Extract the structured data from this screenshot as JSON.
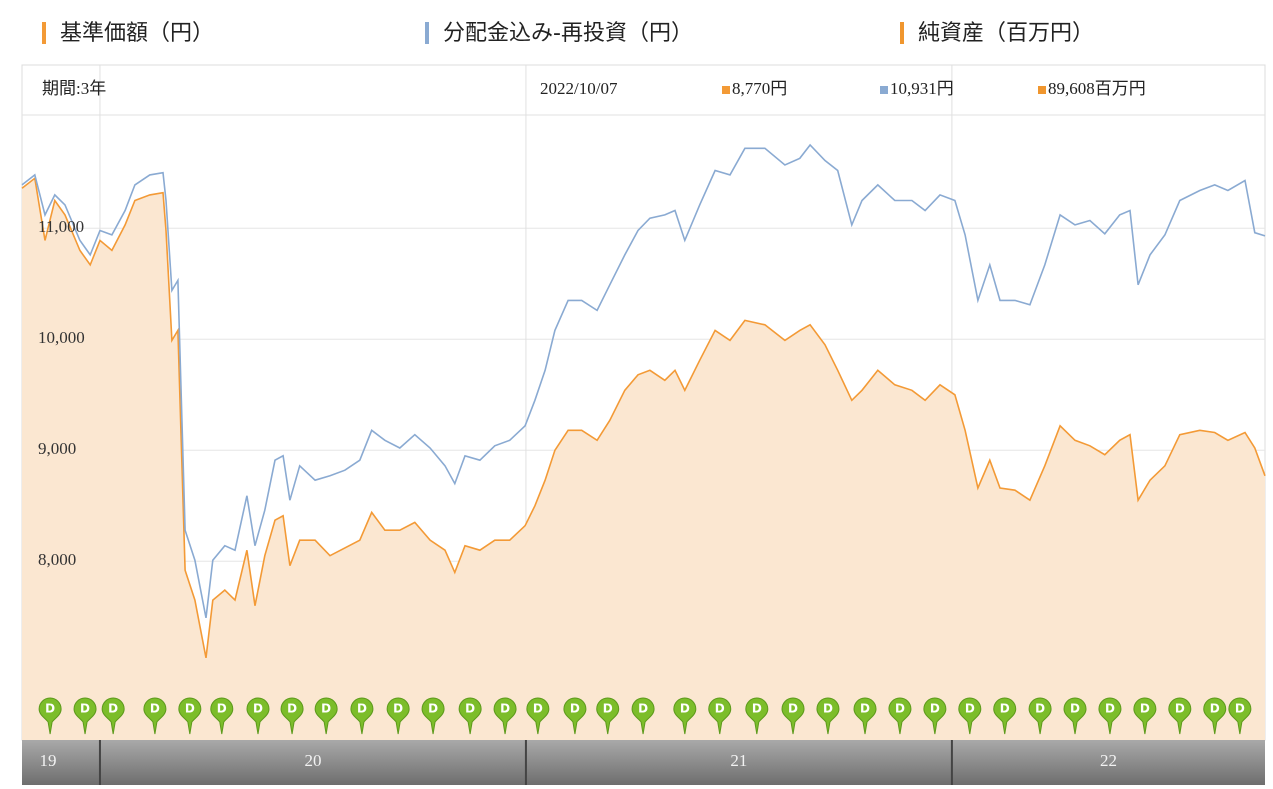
{
  "chart_data": {
    "type": "line",
    "period_label": "期間:3年",
    "date": "2022/10/07",
    "latest": {
      "values": [
        8770,
        10931,
        89608
      ],
      "value_labels": [
        "8,770円",
        "10,931円",
        "89,608百万円"
      ]
    },
    "extra_legend": {
      "name": "純資産（百万円）",
      "color": "#f0962e"
    },
    "x": [
      2019.817,
      2019.847,
      2019.871,
      2019.894,
      2019.918,
      2019.953,
      2019.977,
      2020.0,
      2020.028,
      2020.059,
      2020.082,
      2020.117,
      2020.148,
      2020.155,
      2020.169,
      2020.183,
      2020.2,
      2020.223,
      2020.249,
      2020.265,
      2020.293,
      2020.317,
      2020.345,
      2020.364,
      2020.387,
      2020.411,
      2020.43,
      2020.446,
      2020.469,
      2020.505,
      2020.54,
      2020.575,
      2020.61,
      2020.638,
      2020.669,
      2020.704,
      2020.739,
      2020.775,
      2020.81,
      2020.833,
      2020.857,
      2020.892,
      2020.927,
      2020.962,
      2020.998,
      2021.021,
      2021.045,
      2021.068,
      2021.099,
      2021.131,
      2021.167,
      2021.197,
      2021.232,
      2021.263,
      2021.291,
      2021.326,
      2021.35,
      2021.373,
      2021.408,
      2021.444,
      2021.479,
      2021.514,
      2021.561,
      2021.608,
      2021.643,
      2021.667,
      2021.702,
      2021.732,
      2021.765,
      2021.789,
      2021.826,
      2021.866,
      2021.906,
      2021.937,
      2021.972,
      2022.007,
      2022.031,
      2022.061,
      2022.089,
      2022.113,
      2022.148,
      2022.183,
      2022.218,
      2022.254,
      2022.289,
      2022.324,
      2022.359,
      2022.394,
      2022.418,
      2022.437,
      2022.465,
      2022.5,
      2022.535,
      2022.582,
      2022.617,
      2022.648,
      2022.688,
      2022.711,
      2022.735
    ],
    "series": [
      {
        "name": "基準価額（円）",
        "color": "#f39a36",
        "area": true,
        "area_color": "#fbe7d1",
        "values": [
          11360,
          11450,
          10890,
          11250,
          11120,
          10800,
          10670,
          10890,
          10800,
          11030,
          11250,
          11300,
          11320,
          10980,
          9990,
          10080,
          7920,
          7650,
          7130,
          7650,
          7740,
          7650,
          8100,
          7600,
          8050,
          8370,
          8410,
          7960,
          8190,
          8190,
          8050,
          8120,
          8190,
          8440,
          8280,
          8280,
          8350,
          8190,
          8100,
          7900,
          8140,
          8100,
          8190,
          8190,
          8320,
          8500,
          8730,
          9000,
          9180,
          9180,
          9090,
          9270,
          9540,
          9680,
          9720,
          9630,
          9720,
          9540,
          9810,
          10080,
          9990,
          10170,
          10130,
          9990,
          10080,
          10130,
          9950,
          9720,
          9450,
          9540,
          9720,
          9590,
          9540,
          9450,
          9590,
          9500,
          9180,
          8660,
          8910,
          8660,
          8640,
          8550,
          8860,
          9220,
          9090,
          9040,
          8960,
          9090,
          9140,
          8550,
          8730,
          8860,
          9140,
          9180,
          9160,
          9090,
          9160,
          9020,
          8770
        ]
      },
      {
        "name": "分配金込み-再投資（円）",
        "color": "#8aaad2",
        "area": false,
        "values": [
          11390,
          11480,
          11120,
          11300,
          11210,
          10890,
          10760,
          10980,
          10940,
          11160,
          11390,
          11480,
          11500,
          11250,
          10440,
          10530,
          8280,
          8010,
          7490,
          8010,
          8140,
          8100,
          8590,
          8140,
          8460,
          8910,
          8950,
          8550,
          8860,
          8730,
          8770,
          8820,
          8910,
          9180,
          9090,
          9020,
          9140,
          9020,
          8860,
          8700,
          8950,
          8910,
          9040,
          9090,
          9220,
          9450,
          9720,
          10080,
          10350,
          10350,
          10260,
          10490,
          10760,
          10980,
          11090,
          11120,
          11160,
          10890,
          11210,
          11520,
          11480,
          11720,
          11720,
          11570,
          11630,
          11750,
          11610,
          11520,
          11030,
          11250,
          11390,
          11250,
          11250,
          11160,
          11300,
          11250,
          10940,
          10350,
          10670,
          10350,
          10350,
          10310,
          10670,
          11120,
          11030,
          11070,
          10950,
          11120,
          11160,
          10490,
          10760,
          10940,
          11250,
          11340,
          11390,
          11340,
          11430,
          10960,
          10931
        ]
      }
    ],
    "xlim": [
      2019.817,
      2022.735
    ],
    "xticks": [
      2020,
      2021,
      2022
    ],
    "period_labels": [
      "19",
      "20",
      "21",
      "22"
    ],
    "ylim": [
      6390,
      12020
    ],
    "yticks": [
      {
        "value": 8000,
        "label": "8,000"
      },
      {
        "value": 9000,
        "label": "9,000"
      },
      {
        "value": 10000,
        "label": "10,000"
      },
      {
        "value": 11000,
        "label": "11,000"
      }
    ],
    "grid": true,
    "dividend_label": "D",
    "dividend_color": "#7cbd2a",
    "dividend_x": [
      2019.883,
      2019.965,
      2020.031,
      2020.129,
      2020.211,
      2020.286,
      2020.371,
      2020.451,
      2020.531,
      2020.615,
      2020.7,
      2020.782,
      2020.869,
      2020.951,
      2021.028,
      2021.115,
      2021.192,
      2021.275,
      2021.373,
      2021.455,
      2021.542,
      2021.627,
      2021.709,
      2021.796,
      2021.878,
      2021.96,
      2022.042,
      2022.124,
      2022.207,
      2022.289,
      2022.371,
      2022.453,
      2022.535,
      2022.617,
      2022.676
    ]
  }
}
